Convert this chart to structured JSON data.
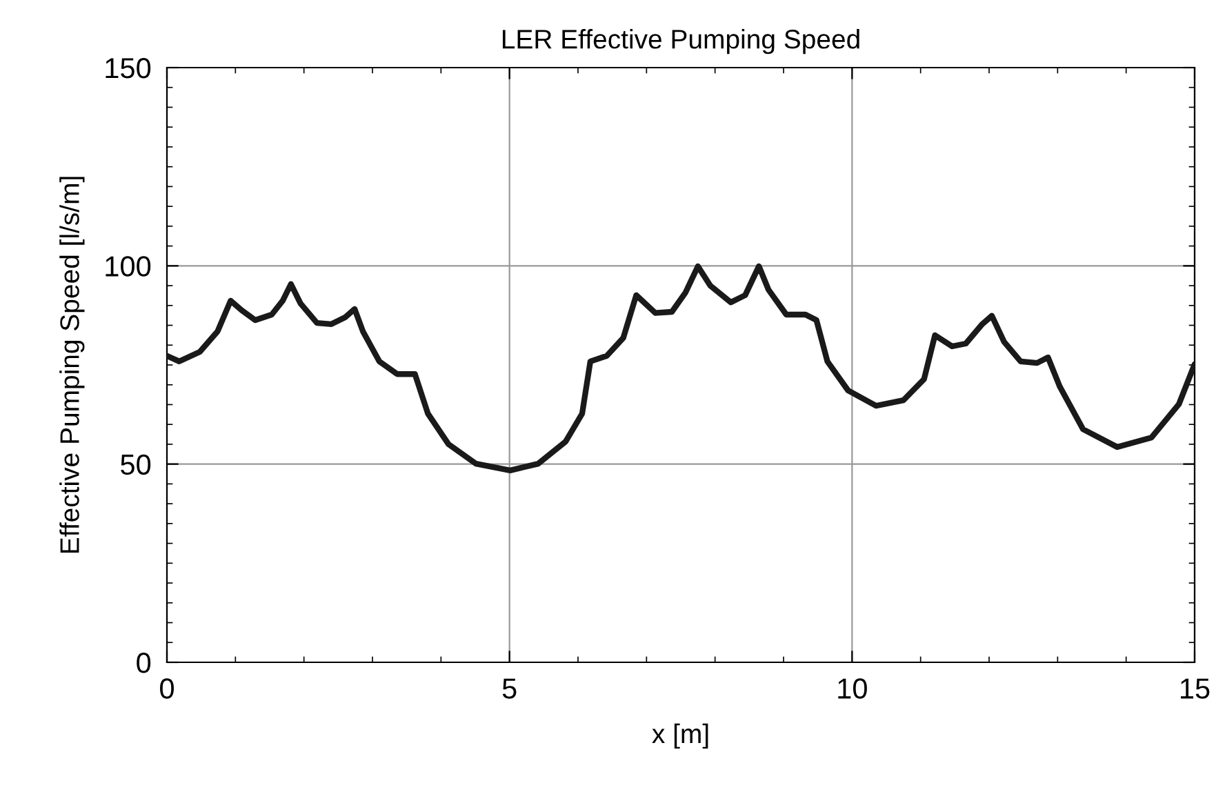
{
  "chart_data": {
    "type": "line",
    "title": "LER Effective Pumping Speed",
    "xlabel": "x [m]",
    "ylabel": "Effective Pumping Speed [l/s/m]",
    "xlim": [
      0,
      15
    ],
    "ylim": [
      0,
      150
    ],
    "xticks": [
      0,
      5,
      10,
      15
    ],
    "yticks": [
      0,
      50,
      100,
      150
    ],
    "grid": true,
    "marker": "none",
    "line_style": "solid",
    "series": [
      {
        "color": "#1a1a1a",
        "x": [
          0,
          0.18,
          0.48,
          0.74,
          0.93,
          1.09,
          1.29,
          1.53,
          1.69,
          1.81,
          1.95,
          2.19,
          2.4,
          2.6,
          2.74,
          2.86,
          3.1,
          3.36,
          3.62,
          3.81,
          4.11,
          4.51,
          5.01,
          5.42,
          5.82,
          6.06,
          6.18,
          6.42,
          6.66,
          6.85,
          7.13,
          7.37,
          7.57,
          7.75,
          7.93,
          8.23,
          8.44,
          8.64,
          8.78,
          9.04,
          9.32,
          9.48,
          9.64,
          9.94,
          10.35,
          10.75,
          11.05,
          11.21,
          11.46,
          11.66,
          11.9,
          12.04,
          12.22,
          12.46,
          12.7,
          12.86,
          13.03,
          13.37,
          13.87,
          14.37,
          14.77,
          15
        ],
        "values": [
          77.3,
          75.9,
          78.3,
          83.5,
          91.2,
          88.8,
          86.3,
          87.7,
          91.2,
          95.4,
          90.5,
          85.6,
          85.3,
          87,
          89.1,
          83.5,
          75.9,
          72.7,
          72.7,
          62.7,
          55,
          50.1,
          48.4,
          50.1,
          55.7,
          62.7,
          75.9,
          77.3,
          81.8,
          92.6,
          88.1,
          88.4,
          93.3,
          99.9,
          95,
          90.8,
          92.6,
          99.9,
          94,
          87.7,
          87.7,
          86.3,
          75.9,
          68.6,
          64.7,
          66.1,
          71.4,
          82.5,
          79.7,
          80.4,
          85.3,
          87.4,
          80.8,
          75.9,
          75.5,
          76.9,
          69.6,
          58.8,
          54.3,
          56.7,
          65.1,
          75.2
        ]
      }
    ]
  }
}
